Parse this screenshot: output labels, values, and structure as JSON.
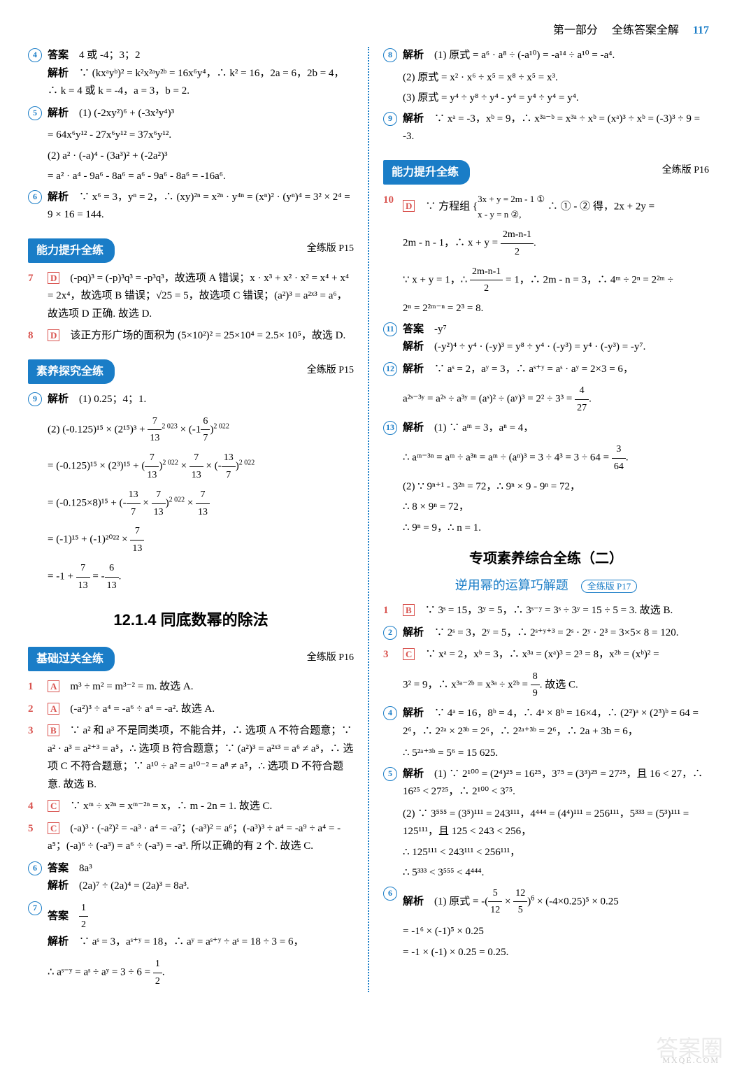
{
  "header": {
    "part": "第一部分",
    "title": "全练答案全解",
    "page": "117"
  },
  "left": {
    "q4": {
      "ans_label": "答案",
      "ans": "4 或 -4；3；2",
      "exp_label": "解析",
      "exp": "∵ (kxᵃyᵇ)² = k²x²ᵃy²ᵇ = 16x⁶y⁴，∴ k² = 16，2a = 6，2b = 4，∴ k = 4 或 k = -4，a = 3，b = 2."
    },
    "q5": {
      "exp_label": "解析",
      "l1": "(1) (-2xy²)⁶ + (-3x²y⁴)³",
      "l2": "= 64x⁶y¹² - 27x⁶y¹² = 37x⁶y¹².",
      "l3": "(2) a² · (-a)⁴ - (3a³)² + (-2a²)³",
      "l4": "= a² · a⁴ - 9a⁶ - 8a⁶ = a⁶ - 9a⁶ - 8a⁶ = -16a⁶."
    },
    "q6": {
      "exp_label": "解析",
      "exp": "∵ x⁶ = 3，yⁿ = 2，∴ (xy)²ⁿ = x²ⁿ · y⁴ⁿ = (xⁿ)² · (yⁿ)⁴ = 3² × 2⁴ = 9 × 16 = 144."
    },
    "sec2": {
      "badge": "能力提升全练",
      "ref": "全练版 P15"
    },
    "q7": {
      "num": "7",
      "letter": "D",
      "exp": "(-pq)³ = (-p)³q³ = -p³q³，故选项 A 错误；x · x³ + x² · x² = x⁴ + x⁴ = 2x⁴，故选项 B 错误；√25 = 5，故选项 C 错误；(a²)³ = a²ˣ³ = a⁶，故选项 D 正确. 故选 D."
    },
    "q8": {
      "num": "8",
      "letter": "D",
      "exp": "该正方形广场的面积为 (5×10²)² = 25×10⁴ = 2.5× 10⁵，故选 D."
    },
    "sec3": {
      "badge": "素养探究全练",
      "ref": "全练版 P15"
    },
    "q9": {
      "exp_label": "解析",
      "p1": "(1) 0.25；4；1.",
      "p2a": "(2) (-0.125)¹⁵ × (2¹⁵)³ + ",
      "p2b": " × ",
      "p3a": "= (-0.125)¹⁵ × (2³)¹⁵ + ",
      "p3b": " × ",
      "p3c": " × ",
      "p4a": "= (-0.125×8)¹⁵ + ",
      "p4b": " × ",
      "p5": "= (-1)¹⁵ + (-1)²⁰²² × ",
      "p6a": "= -1 + ",
      "p6b": " = ",
      "p6c": "."
    },
    "title1": "12.1.4  同底数幂的除法",
    "sec4": {
      "badge": "基础过关全练",
      "ref": "全练版 P16"
    },
    "b1": {
      "num": "1",
      "letter": "A",
      "exp": "m³ ÷ m² = m³⁻² = m. 故选 A."
    },
    "b2": {
      "num": "2",
      "letter": "A",
      "exp": "(-a²)³ ÷ a⁴ = -a⁶ ÷ a⁴ = -a². 故选 A."
    },
    "b3": {
      "num": "3",
      "letter": "B",
      "exp": "∵ a² 和 a³ 不是同类项，不能合并，∴ 选项 A 不符合题意；∵ a² · a³ = a²⁺³ = a⁵，∴ 选项 B 符合题意；∵ (a²)³ = a²ˣ³ = a⁶ ≠ a⁵，∴ 选项 C 不符合题意；∵ a¹⁰ ÷ a² = a¹⁰⁻² = a⁸ ≠ a⁵，∴ 选项 D 不符合题意. 故选 B."
    },
    "b4": {
      "num": "4",
      "letter": "C",
      "exp": "∵ xᵐ ÷ x²ⁿ = xᵐ⁻²ⁿ = x，∴ m - 2n = 1. 故选 C."
    },
    "b5": {
      "num": "5",
      "letter": "C",
      "exp": "(-a)³ · (-a²)² = -a³ · a⁴ = -a⁷；(-a³)² = a⁶；(-a³)³ ÷ a⁴ = -a⁹ ÷ a⁴ = -a⁵；(-a)⁶ ÷ (-a³) = a⁶ ÷ (-a³) = -a³. 所以正确的有 2 个. 故选 C."
    },
    "b6": {
      "ans_label": "答案",
      "ans": "8a³",
      "exp_label": "解析",
      "exp": "(2a)⁷ ÷ (2a)⁴ = (2a)³ = 8a³."
    },
    "b7": {
      "ans_label": "答案",
      "exp_label": "解析",
      "exp1": "∵ aˢ = 3，aˢ⁺ʸ = 18，∴ aʸ = aˢ⁺ʸ ÷ aˢ = 18 ÷ 3 = 6，",
      "exp2a": "∴ aˢ⁻ʸ = aˢ ÷ aʸ = 3 ÷ 6 = ",
      "exp2b": "."
    }
  },
  "right": {
    "q8": {
      "exp_label": "解析",
      "l1": "(1) 原式 = a⁶ · a⁸ ÷ (-a¹⁰) = -a¹⁴ ÷ a¹⁰ = -a⁴.",
      "l2": "(2) 原式 = x² · x⁶ ÷ x⁵ = x⁸ ÷ x⁵ = x³.",
      "l3": "(3) 原式 = y⁴ ÷ y⁸ ÷ y⁴ - y⁴ = y⁴ ÷ y⁴ = y⁴."
    },
    "q9": {
      "exp_label": "解析",
      "exp": "∵ xᵃ = -3，xᵇ = 9，∴ x³ᵃ⁻ᵇ = x³ᵃ ÷ xᵇ = (xᵃ)³ ÷ xᵇ = (-3)³ ÷ 9 = -3."
    },
    "sec2": {
      "badge": "能力提升全练",
      "ref": "全练版 P16"
    },
    "q10": {
      "num": "10",
      "letter": "D",
      "l1a": "∵ 方程组 ",
      "sys1": "3x + y = 2m - 1 ①",
      "sys2": "x - y = n ②,",
      "l1b": " ∴ ① - ② 得，2x + 2y =",
      "l2a": "2m - n - 1，∴ x + y = ",
      "l2b": ".",
      "l3a": "∵ x + y = 1，∴ ",
      "l3b": " = 1，∴ 2m - n = 3，∴ 4ᵐ ÷ 2ⁿ = 2²ᵐ ÷",
      "l4": "2ⁿ = 2²ᵐ⁻ⁿ = 2³ = 8."
    },
    "q11": {
      "ans_label": "答案",
      "ans": "-y⁷",
      "exp_label": "解析",
      "exp": "(-y²)⁴ ÷ y⁴ · (-y)³ = y⁸ ÷ y⁴ · (-y³) = y⁴ · (-y³) = -y⁷."
    },
    "q12": {
      "exp_label": "解析",
      "l1": "∵ aˢ = 2，aʸ = 3，∴ aˢ⁺ʸ = aˢ · aʸ = 2×3 = 6，",
      "l2a": "a²ˢ⁻³ʸ = a²ˢ ÷ a³ʸ = (aˢ)² ÷ (aʸ)³ = 2² ÷ 3³ = ",
      "l2b": "."
    },
    "q13": {
      "exp_label": "解析",
      "l1": "(1) ∵ aᵐ = 3，aⁿ = 4，",
      "l2a": "∴ aᵐ⁻³ⁿ = aᵐ ÷ a³ⁿ = aᵐ ÷ (aⁿ)³ = 3 ÷ 4³ = 3 ÷ 64 = ",
      "l2b": ".",
      "l3": "(2) ∵ 9ⁿ⁺¹ - 3²ⁿ = 72，∴ 9ⁿ × 9 - 9ⁿ = 72，",
      "l4": "∴ 8 × 9ⁿ = 72，",
      "l5": "∴ 9ⁿ = 9，∴ n = 1."
    },
    "title1": "专项素养综合全练（二）",
    "subtitle": "逆用幂的运算巧解题",
    "subtitle_ref": "全练版 P17",
    "c1": {
      "num": "1",
      "letter": "B",
      "exp": "∵ 3ˢ = 15，3ʸ = 5，∴ 3ˢ⁻ʸ = 3ˢ ÷ 3ʸ = 15 ÷ 5 = 3. 故选 B."
    },
    "c2": {
      "exp_label": "解析",
      "exp": "∵ 2ˢ = 3，2ʸ = 5，∴ 2ˢ⁺ʸ⁺³ = 2ˢ · 2ʸ · 2³ = 3×5× 8 = 120."
    },
    "c3": {
      "num": "3",
      "letter": "C",
      "l1": "∵ xᵃ = 2，xᵇ = 3，∴ x³ᵃ = (xᵃ)³ = 2³ = 8，x²ᵇ = (xᵇ)² =",
      "l2a": "3² = 9，∴ x³ᵃ⁻²ᵇ = x³ᵃ ÷ x²ᵇ = ",
      "l2b": ". 故选 C."
    },
    "c4": {
      "exp_label": "解析",
      "l1": "∵ 4ᵃ = 16，8ᵇ = 4，∴ 4ᵃ × 8ᵇ = 16×4，∴ (2²)ᵃ × (2³)ᵇ = 64 = 2⁶，∴ 2²ᵃ × 2³ᵇ = 2⁶，∴ 2²ᵃ⁺³ᵇ = 2⁶，∴ 2a + 3b = 6，",
      "l2": "∴ 5²ᵃ⁺³ᵇ = 5⁶ = 15 625."
    },
    "c5": {
      "exp_label": "解析",
      "l1": "(1) ∵ 2¹⁰⁰ = (2⁴)²⁵ = 16²⁵，3⁷⁵ = (3³)²⁵ = 27²⁵，且 16 < 27，∴ 16²⁵ < 27²⁵，∴ 2¹⁰⁰ < 3⁷⁵.",
      "l2": "(2) ∵ 3⁵⁵⁵ = (3⁵)¹¹¹ = 243¹¹¹，4⁴⁴⁴ = (4⁴)¹¹¹ = 256¹¹¹，5³³³ = (5³)¹¹¹ = 125¹¹¹，且 125 < 243 < 256，",
      "l3": "∴ 125¹¹¹ < 243¹¹¹ < 256¹¹¹，",
      "l4": "∴ 5³³³ < 3⁵⁵⁵ < 4⁴⁴⁴."
    },
    "c6": {
      "exp_label": "解析",
      "l1a": "(1) 原式 = -",
      "l1b": " × (-4×0.25)⁵ × 0.25",
      "l2": "= -1⁶ × (-1)⁵ × 0.25",
      "l3": "= -1 × (-1) × 0.25 = 0.25."
    }
  },
  "watermark": {
    "main": "答案圈",
    "sub": "MXQE.COM"
  }
}
